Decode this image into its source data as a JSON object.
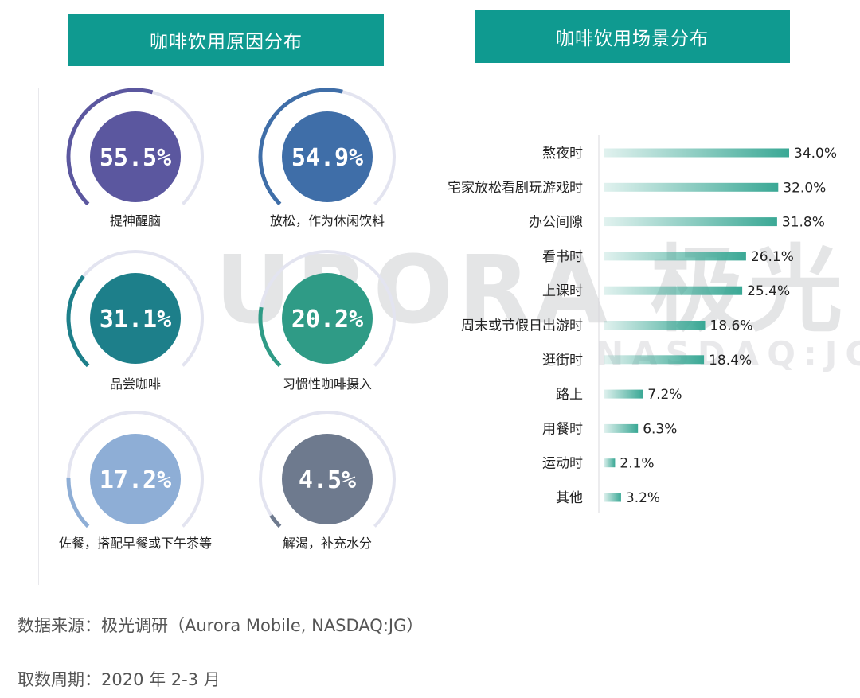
{
  "left_title": "咖啡饮用原因分布",
  "right_title": "咖啡饮用场景分布",
  "watermark": {
    "main": "URORA 极光",
    "sub": "NASDAQ:JG"
  },
  "footer": {
    "source": "数据来源：极光调研（Aurora Mobile, NASDAQ:JG）",
    "period": "取数周期：2020 年 2-3 月"
  },
  "chart_data": [
    {
      "type": "gauge",
      "title": "咖啡饮用原因分布",
      "items": [
        {
          "label": "提神醒脑",
          "value": 55.5,
          "display": "55.5%",
          "color": "#5b579f"
        },
        {
          "label": "放松，作为休闲饮料",
          "value": 54.9,
          "display": "54.9%",
          "color": "#3f6ea8"
        },
        {
          "label": "品尝咖啡",
          "value": 31.1,
          "display": "31.1%",
          "color": "#1d7f8a"
        },
        {
          "label": "习惯性咖啡摄入",
          "value": 20.2,
          "display": "20.2%",
          "color": "#2f9b86"
        },
        {
          "label": "佐餐，搭配早餐或下午茶等",
          "value": 17.2,
          "display": "17.2%",
          "color": "#8eaed6"
        },
        {
          "label": "解渴，补充水分",
          "value": 4.5,
          "display": "4.5%",
          "color": "#6e7a8e"
        }
      ]
    },
    {
      "type": "bar",
      "orientation": "horizontal",
      "title": "咖啡饮用场景分布",
      "categories": [
        "熬夜时",
        "宅家放松看剧玩游戏时",
        "办公间隙",
        "看书时",
        "上课时",
        "周末或节假日出游时",
        "逛街时",
        "路上",
        "用餐时",
        "运动时",
        "其他"
      ],
      "values": [
        34.0,
        32.0,
        31.8,
        26.1,
        25.4,
        18.6,
        18.4,
        7.2,
        6.3,
        2.1,
        3.2
      ],
      "value_labels": [
        "34.0%",
        "32.0%",
        "31.8%",
        "26.1%",
        "25.4%",
        "18.6%",
        "18.4%",
        "7.2%",
        "6.3%",
        "2.1%",
        "3.2%"
      ],
      "xlim": [
        0,
        34
      ],
      "color": "#3aa895"
    }
  ]
}
